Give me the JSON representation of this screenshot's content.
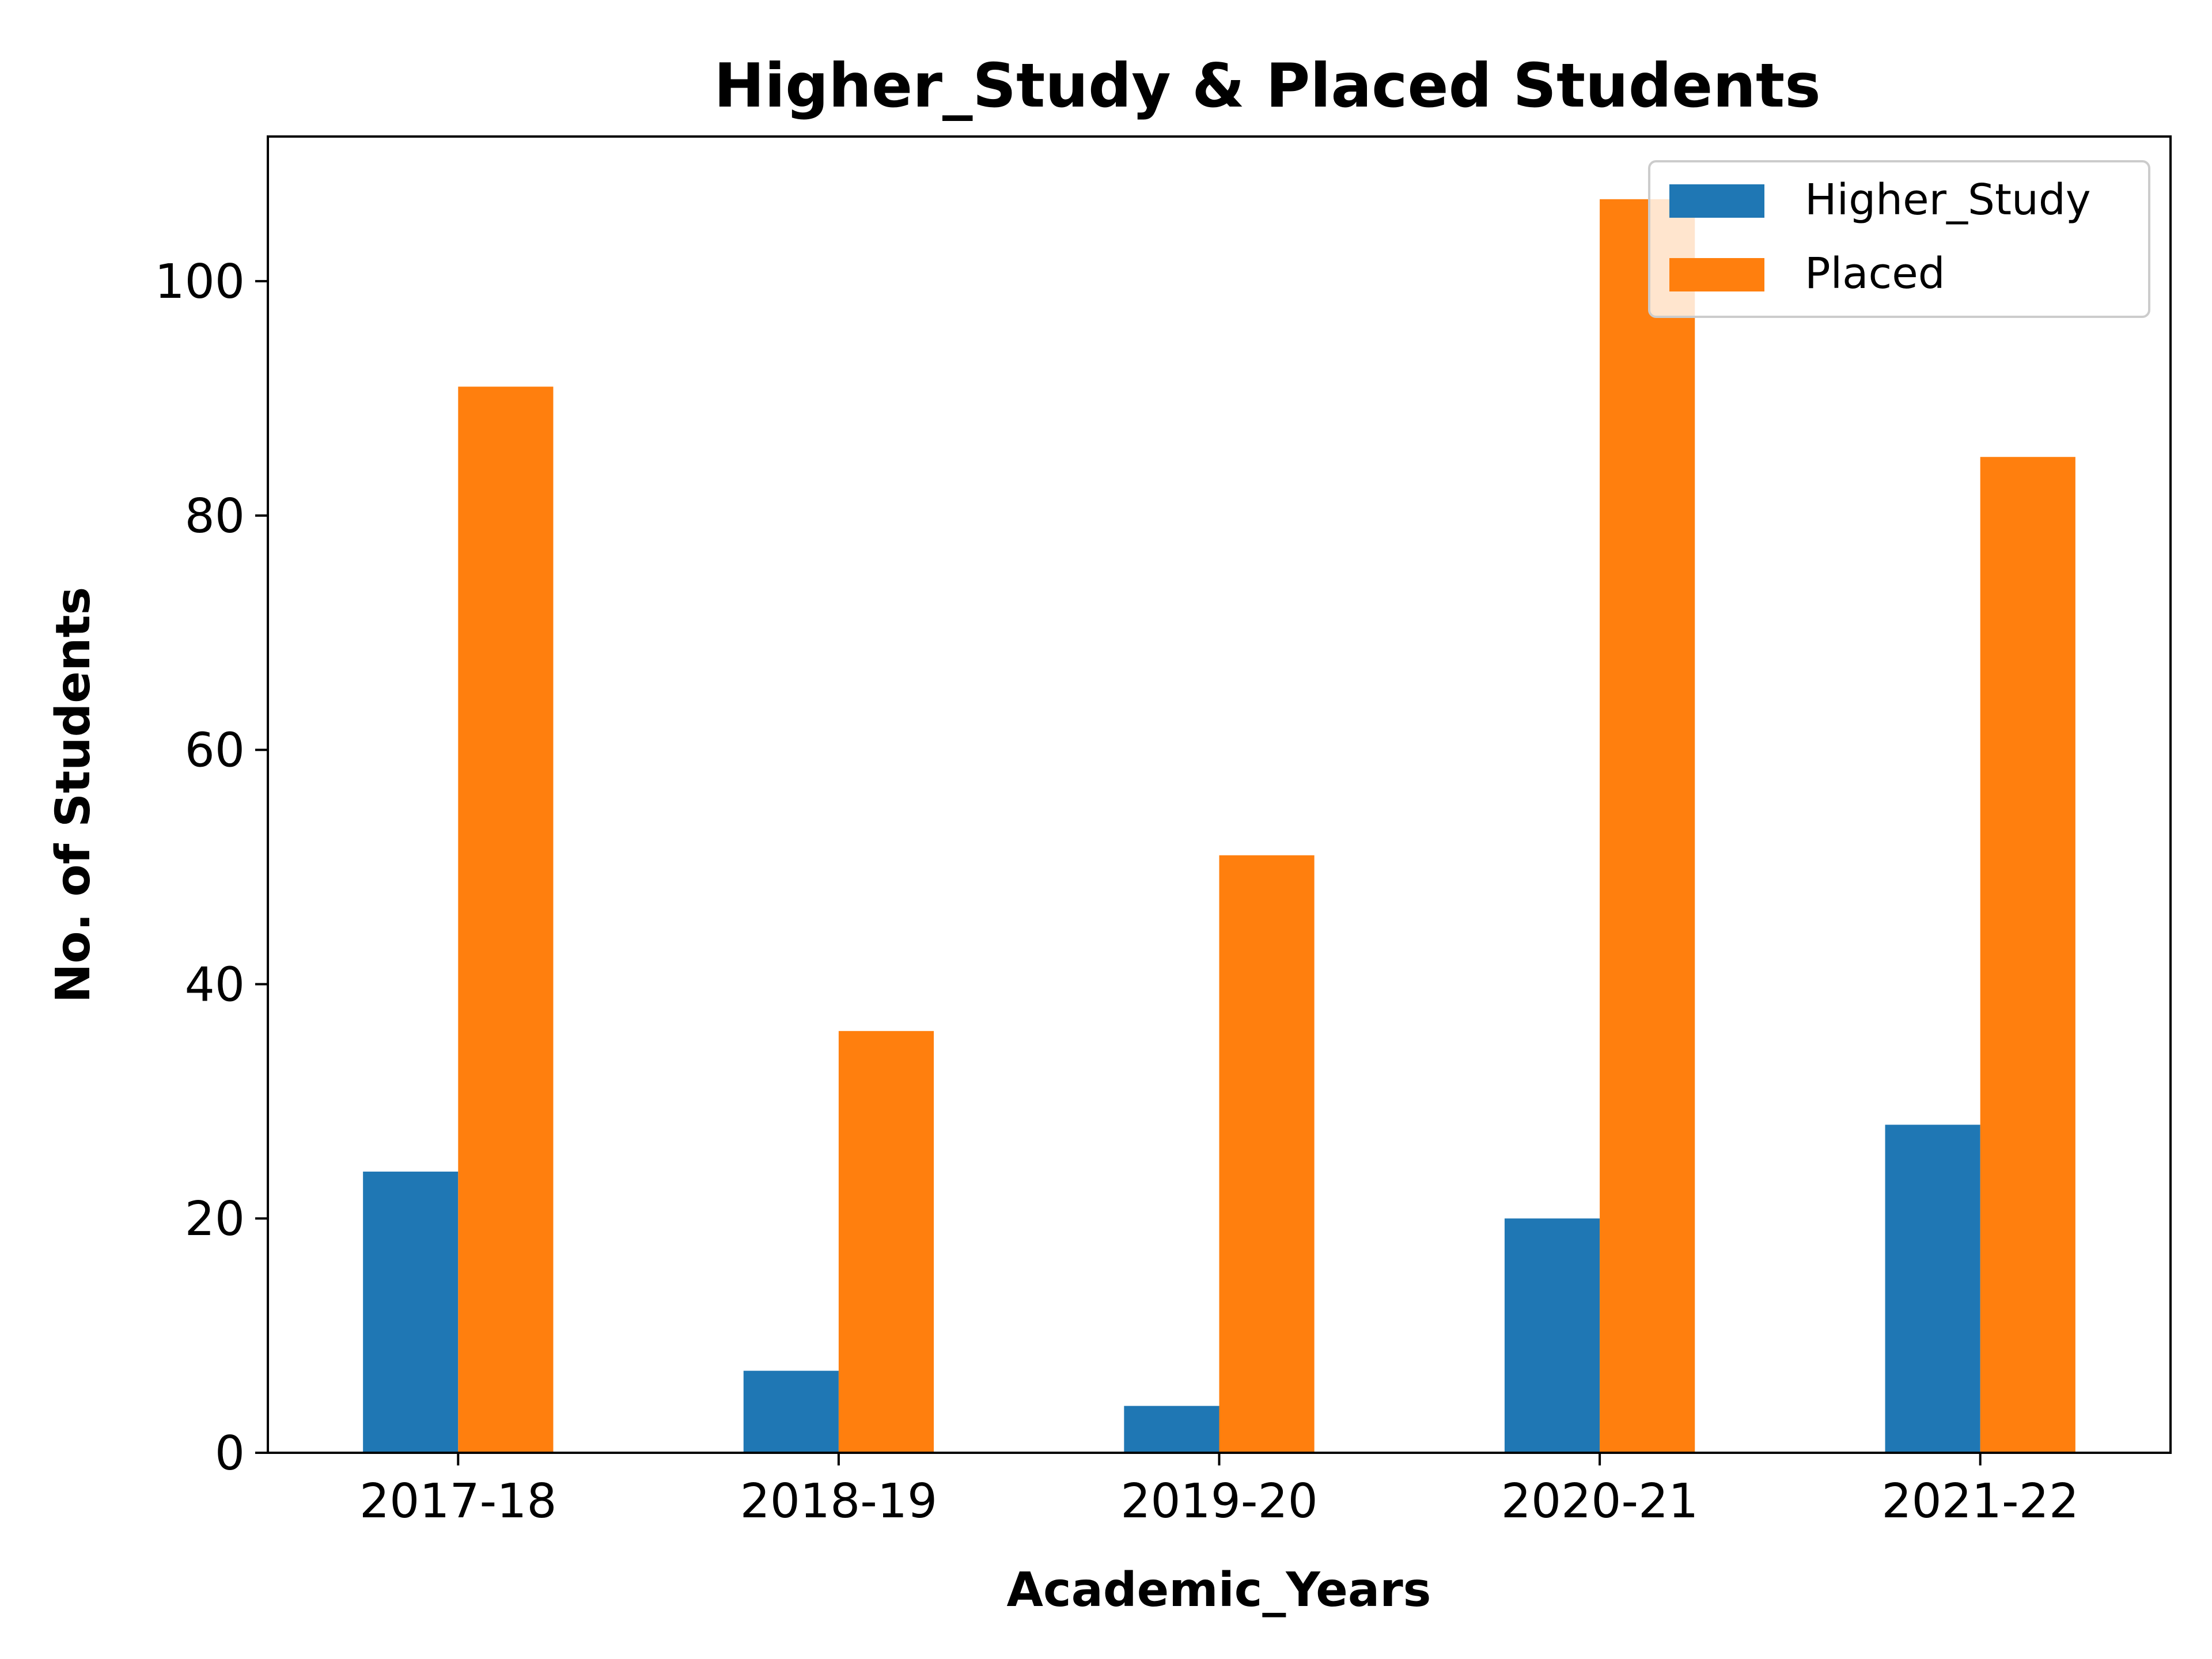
{
  "chart_data": {
    "type": "bar",
    "title": "Higher_Study & Placed Students",
    "xlabel": "Academic_Years",
    "ylabel": "No. of Students",
    "categories": [
      "2017-18",
      "2018-19",
      "2019-20",
      "2020-21",
      "2021-22"
    ],
    "series": [
      {
        "name": "Higher_Study",
        "color": "#1f77b4",
        "values": [
          24,
          7,
          4,
          20,
          28
        ]
      },
      {
        "name": "Placed",
        "color": "#ff7f0e",
        "values": [
          91,
          36,
          51,
          107,
          85
        ]
      }
    ],
    "ylim": [
      0,
      112.35
    ],
    "yticks": [
      0,
      20,
      40,
      60,
      80,
      100
    ],
    "grid": false,
    "legend_position": "top-right"
  }
}
